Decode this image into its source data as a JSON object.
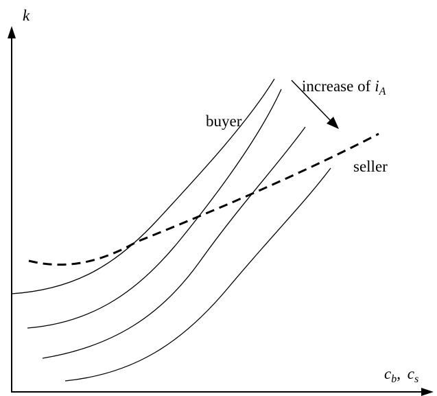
{
  "axes": {
    "y_label": "k",
    "x_label": {
      "parts": [
        {
          "text": "c",
          "sub": "b"
        },
        {
          "text": "c",
          "sub": "s"
        }
      ],
      "separator": ", "
    }
  },
  "curves": {
    "buyer": "buyer",
    "seller": "seller"
  },
  "annotation": {
    "text": "increase of",
    "var": "i",
    "sub": "A"
  }
}
